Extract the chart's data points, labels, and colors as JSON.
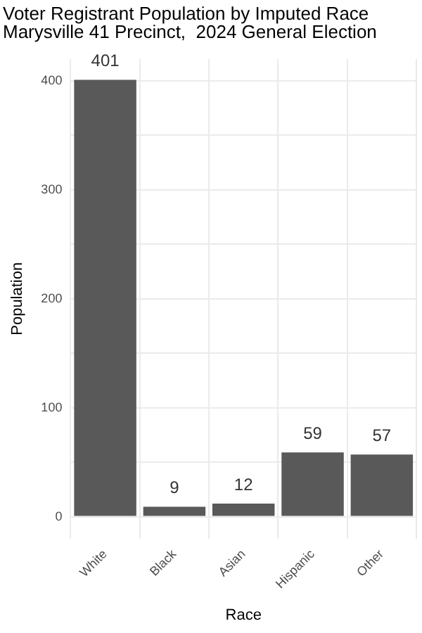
{
  "chart_data": {
    "type": "bar",
    "title": "Voter Registrant Population by Imputed Race",
    "subtitle": "Marysville 41 Precinct,  2024 General Election",
    "xlabel": "Race",
    "ylabel": "Population",
    "categories": [
      "White",
      "Black",
      "Asian",
      "Hispanic",
      "Other"
    ],
    "values": [
      401,
      9,
      12,
      59,
      57
    ],
    "color": "#595959",
    "data_labels": true,
    "ylim": [
      -20,
      420
    ],
    "yticks": [
      0,
      {
        "value": 50,
        "label": null
      },
      100,
      {
        "value": 150,
        "label": null
      },
      200,
      {
        "value": 250,
        "label": null
      },
      300,
      {
        "value": 350,
        "label": null
      },
      400
    ],
    "grid": true,
    "legend": false
  }
}
